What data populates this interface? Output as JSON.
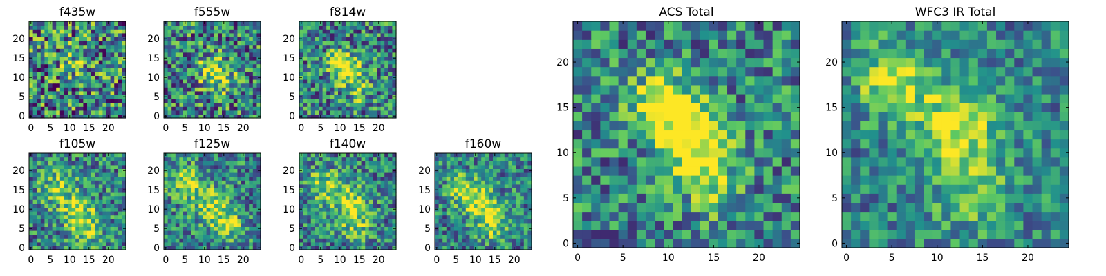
{
  "chart_data": {
    "type": "heatmap",
    "colormap": "viridis",
    "colormap_stops": [
      "#440154",
      "#3b528b",
      "#21918c",
      "#5ec962",
      "#fde725"
    ],
    "grid": false,
    "panels": [
      {
        "title": "f435w",
        "xticks": [
          0,
          5,
          10,
          15,
          20
        ],
        "yticks": [
          0,
          5,
          10,
          15,
          20
        ],
        "xlim": [
          0,
          25
        ],
        "ylim": [
          0,
          25
        ],
        "blobs": [
          [
            12,
            15,
            3,
            0.25
          ]
        ],
        "noise": 0.48,
        "seed": 11
      },
      {
        "title": "f555w",
        "xticks": [
          0,
          5,
          10,
          15,
          20
        ],
        "yticks": [
          0,
          5,
          10,
          15,
          20
        ],
        "xlim": [
          0,
          25
        ],
        "ylim": [
          0,
          25
        ],
        "blobs": [
          [
            12,
            12,
            2.6,
            0.45
          ],
          [
            15,
            9,
            2.4,
            0.25
          ]
        ],
        "noise": 0.42,
        "seed": 23
      },
      {
        "title": "f814w",
        "xticks": [
          0,
          5,
          10,
          15,
          20
        ],
        "yticks": [
          0,
          5,
          10,
          15,
          20
        ],
        "xlim": [
          0,
          25
        ],
        "ylim": [
          0,
          25
        ],
        "blobs": [
          [
            10,
            14,
            2.2,
            0.5
          ],
          [
            13,
            11,
            2.4,
            0.45
          ],
          [
            15,
            6,
            2.5,
            0.2
          ]
        ],
        "noise": 0.38,
        "seed": 37
      },
      {
        "title": "f105w",
        "xticks": [
          0,
          5,
          10,
          15,
          20
        ],
        "yticks": [
          0,
          5,
          10,
          15,
          20
        ],
        "xlim": [
          0,
          25
        ],
        "ylim": [
          0,
          25
        ],
        "blobs": [
          [
            7,
            16,
            3.2,
            0.35
          ],
          [
            12,
            10,
            3,
            0.35
          ],
          [
            14,
            5,
            3,
            0.35
          ]
        ],
        "noise": 0.34,
        "seed": 41
      },
      {
        "title": "f125w",
        "xticks": [
          0,
          5,
          10,
          15,
          20
        ],
        "yticks": [
          0,
          5,
          10,
          15,
          20
        ],
        "xlim": [
          0,
          25
        ],
        "ylim": [
          0,
          25
        ],
        "blobs": [
          [
            5,
            17,
            3,
            0.4
          ],
          [
            12,
            11,
            3.2,
            0.4
          ],
          [
            16,
            6,
            3,
            0.3
          ]
        ],
        "noise": 0.33,
        "seed": 53
      },
      {
        "title": "f140w",
        "xticks": [
          0,
          5,
          10,
          15,
          20
        ],
        "yticks": [
          0,
          5,
          10,
          15,
          20
        ],
        "xlim": [
          0,
          25
        ],
        "ylim": [
          0,
          25
        ],
        "blobs": [
          [
            6,
            16,
            3,
            0.4
          ],
          [
            13,
            12,
            3,
            0.4
          ],
          [
            14,
            6,
            3,
            0.3
          ]
        ],
        "noise": 0.33,
        "seed": 67
      },
      {
        "title": "f160w",
        "xticks": [
          0,
          5,
          10,
          15,
          20
        ],
        "yticks": [
          0,
          5,
          10,
          15,
          20
        ],
        "xlim": [
          0,
          25
        ],
        "ylim": [
          0,
          25
        ],
        "blobs": [
          [
            7,
            15,
            2.8,
            0.45
          ],
          [
            12,
            11,
            3,
            0.45
          ],
          [
            15,
            6,
            2.8,
            0.35
          ]
        ],
        "noise": 0.32,
        "seed": 79
      },
      {
        "title": "ACS Total",
        "xticks": [
          0,
          5,
          10,
          15,
          20
        ],
        "yticks": [
          0,
          5,
          10,
          15,
          20
        ],
        "xlim": [
          0,
          25
        ],
        "ylim": [
          0,
          25
        ],
        "blobs": [
          [
            9,
            16,
            2.4,
            0.45
          ],
          [
            12,
            13,
            2.4,
            0.55
          ],
          [
            13,
            10,
            2.4,
            0.4
          ],
          [
            15,
            6,
            2.4,
            0.25
          ]
        ],
        "noise": 0.33,
        "seed": 97
      },
      {
        "title": "WFC3 IR Total",
        "xticks": [
          0,
          5,
          10,
          15,
          20
        ],
        "yticks": [
          0,
          5,
          10,
          15,
          20
        ],
        "xlim": [
          0,
          25
        ],
        "ylim": [
          0,
          25
        ],
        "blobs": [
          [
            5,
            18,
            2.8,
            0.45
          ],
          [
            12,
            13,
            3,
            0.5
          ],
          [
            14,
            6,
            3,
            0.3
          ]
        ],
        "noise": 0.26,
        "seed": 113
      }
    ]
  }
}
